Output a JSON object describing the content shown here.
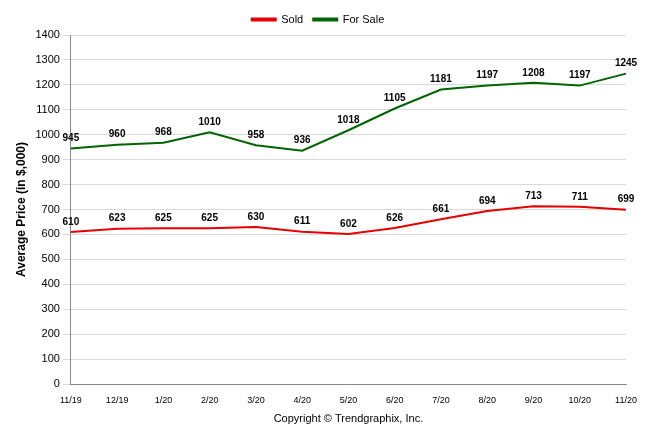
{
  "chart_data": {
    "type": "line",
    "x_label": "Copyright © Trendgraphix, Inc.",
    "y_label": "Average Price (in $,000)",
    "categories": [
      "11/19",
      "12/19",
      "1/20",
      "2/20",
      "3/20",
      "4/20",
      "5/20",
      "6/20",
      "7/20",
      "8/20",
      "9/20",
      "10/20",
      "11/20"
    ],
    "series": [
      {
        "name": "Sold",
        "color": "#e60000",
        "values": [
          610,
          623,
          625,
          625,
          630,
          611,
          602,
          626,
          661,
          694,
          713,
          711,
          699
        ]
      },
      {
        "name": "For Sale",
        "color": "#006400",
        "values": [
          945,
          960,
          968,
          1010,
          958,
          936,
          1018,
          1105,
          1181,
          1197,
          1208,
          1197,
          1245
        ]
      }
    ],
    "ylim": [
      0,
      1400
    ],
    "yticks": [
      0,
      100,
      200,
      300,
      400,
      500,
      600,
      700,
      800,
      900,
      1000,
      1100,
      1200,
      1300,
      1400
    ],
    "grid": "y",
    "legend": "top",
    "data_labels": true,
    "marker": "none",
    "line_style": "solid"
  }
}
